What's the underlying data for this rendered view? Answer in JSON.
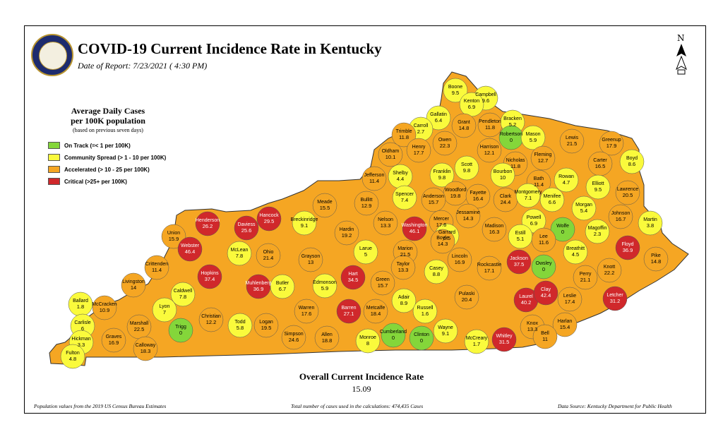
{
  "header": {
    "title": "COVID-19 Current Incidence Rate in Kentucky",
    "date": "Date of Report: 7/23/2021 ( 4:30 PM)"
  },
  "legend": {
    "title_line1": "Average Daily Cases",
    "title_line2": "per 100K population",
    "note": "(based on previous seven days)",
    "items": [
      {
        "label": "On Track (=< 1 per 100K)",
        "color": "#84d63a"
      },
      {
        "label": "Community Spread (> 1 - 10 per 100K)",
        "color": "#fafa3c"
      },
      {
        "label": "Accelerated (> 10 - 25 per 100K)",
        "color": "#f5a623"
      },
      {
        "label": "Critical (>25+ per 100K)",
        "color": "#d0282b"
      }
    ]
  },
  "counties": [
    {
      "name": "Boone",
      "value": "9.5"
    },
    {
      "name": "Campbell",
      "value": "9.6"
    },
    {
      "name": "Kenton",
      "value": "6.9"
    },
    {
      "name": "Gallatin",
      "value": "6.4"
    },
    {
      "name": "Carroll",
      "value": "2.7"
    },
    {
      "name": "Grant",
      "value": "14.8"
    },
    {
      "name": "Pendleton",
      "value": "11.8"
    },
    {
      "name": "Bracken",
      "value": "5.2"
    },
    {
      "name": "Trimble",
      "value": "11.8"
    },
    {
      "name": "Henry",
      "value": "17.7"
    },
    {
      "name": "Owen",
      "value": "22.3"
    },
    {
      "name": "Robertson",
      "value": "0"
    },
    {
      "name": "Mason",
      "value": "5.9"
    },
    {
      "name": "Lewis",
      "value": "21.5"
    },
    {
      "name": "Greenup",
      "value": "17.9"
    },
    {
      "name": "Harrison",
      "value": "12.1"
    },
    {
      "name": "Oldham",
      "value": "10.1"
    },
    {
      "name": "Fleming",
      "value": "12.7"
    },
    {
      "name": "Boyd",
      "value": "8.6"
    },
    {
      "name": "Carter",
      "value": "16.5"
    },
    {
      "name": "Nicholas",
      "value": "11.8"
    },
    {
      "name": "Scott",
      "value": "9.8"
    },
    {
      "name": "Jefferson",
      "value": "11.4"
    },
    {
      "name": "Shelby",
      "value": "4.4"
    },
    {
      "name": "Franklin",
      "value": "9.8"
    },
    {
      "name": "Bourbon",
      "value": "10"
    },
    {
      "name": "Bath",
      "value": "11.4"
    },
    {
      "name": "Rowan",
      "value": "4.7"
    },
    {
      "name": "Elliott",
      "value": "9.5"
    },
    {
      "name": "Lawrence",
      "value": "20.5"
    },
    {
      "name": "Woodford",
      "value": "19.8"
    },
    {
      "name": "Spencer",
      "value": "7.4"
    },
    {
      "name": "Anderson",
      "value": "15.7"
    },
    {
      "name": "Fayette",
      "value": "16.4"
    },
    {
      "name": "Clark",
      "value": "24.4"
    },
    {
      "name": "Montgomery",
      "value": "7.1"
    },
    {
      "name": "Menifee",
      "value": "6.6"
    },
    {
      "name": "Morgan",
      "value": "5.4"
    },
    {
      "name": "Hancock",
      "value": "29.5"
    },
    {
      "name": "Meade",
      "value": "15.5"
    },
    {
      "name": "Bullitt",
      "value": "12.9"
    },
    {
      "name": "Jessamine",
      "value": "14.3"
    },
    {
      "name": "Johnson",
      "value": "16.7"
    },
    {
      "name": "Martin",
      "value": "3.8"
    },
    {
      "name": "Henderson",
      "value": "26.2"
    },
    {
      "name": "Daviess",
      "value": "25.6"
    },
    {
      "name": "Breckinridge",
      "value": "9.1"
    },
    {
      "name": "Nelson",
      "value": "13.3"
    },
    {
      "name": "Washington",
      "value": "46.1"
    },
    {
      "name": "Mercer",
      "value": "17.6"
    },
    {
      "name": "Powell",
      "value": "6.9"
    },
    {
      "name": "Wolfe",
      "value": "0"
    },
    {
      "name": "Magoffin",
      "value": "2.3"
    },
    {
      "name": "Union",
      "value": "15.9"
    },
    {
      "name": "Hardin",
      "value": "19.2"
    },
    {
      "name": "Garrard",
      "value": "6.5"
    },
    {
      "name": "Madison",
      "value": "16.3"
    },
    {
      "name": "Estill",
      "value": "5.1"
    },
    {
      "name": "Lee",
      "value": "11.6"
    },
    {
      "name": "Boyle",
      "value": "14.3"
    },
    {
      "name": "Webster",
      "value": "46.4"
    },
    {
      "name": "McLean",
      "value": "7.8"
    },
    {
      "name": "Larue",
      "value": "5"
    },
    {
      "name": "Marion",
      "value": "21.5"
    },
    {
      "name": "Breathitt",
      "value": "4.5"
    },
    {
      "name": "Floyd",
      "value": "36.9"
    },
    {
      "name": "Ohio",
      "value": "21.4"
    },
    {
      "name": "Grayson",
      "value": "13"
    },
    {
      "name": "Lincoln",
      "value": "16.9"
    },
    {
      "name": "Rockcastle",
      "value": "17.1"
    },
    {
      "name": "Jackson",
      "value": "37.5"
    },
    {
      "name": "Owsley",
      "value": "0"
    },
    {
      "name": "Pike",
      "value": "14.8"
    },
    {
      "name": "Crittenden",
      "value": "11.4"
    },
    {
      "name": "Hopkins",
      "value": "37.4"
    },
    {
      "name": "Hart",
      "value": "34.5"
    },
    {
      "name": "Taylor",
      "value": "13.3"
    },
    {
      "name": "Casey",
      "value": "8.8"
    },
    {
      "name": "Knott",
      "value": "22.2"
    },
    {
      "name": "Perry",
      "value": "21.1"
    },
    {
      "name": "Livingston",
      "value": "14"
    },
    {
      "name": "Muhlenberg",
      "value": "36.9"
    },
    {
      "name": "Butler",
      "value": "6.7"
    },
    {
      "name": "Edmonson",
      "value": "5.9"
    },
    {
      "name": "Green",
      "value": "15.7"
    },
    {
      "name": "Caldwell",
      "value": "7.8"
    },
    {
      "name": "Adair",
      "value": "8.9"
    },
    {
      "name": "Pulaski",
      "value": "20.4"
    },
    {
      "name": "Laurel",
      "value": "40.2"
    },
    {
      "name": "Clay",
      "value": "42.4"
    },
    {
      "name": "Leslie",
      "value": "17.4"
    },
    {
      "name": "Letcher",
      "value": "31.2"
    },
    {
      "name": "Ballard",
      "value": "1.8"
    },
    {
      "name": "McCracken",
      "value": "10.9"
    },
    {
      "name": "Lyon",
      "value": "7"
    },
    {
      "name": "Barren",
      "value": "27.1"
    },
    {
      "name": "Metcalfe",
      "value": "18.4"
    },
    {
      "name": "Russell",
      "value": "1.6"
    },
    {
      "name": "Christian",
      "value": "12.2"
    },
    {
      "name": "Todd",
      "value": "5.8"
    },
    {
      "name": "Logan",
      "value": "19.5"
    },
    {
      "name": "Warren",
      "value": "17.6"
    },
    {
      "name": "Knox",
      "value": "13.3"
    },
    {
      "name": "Harlan",
      "value": "15.4"
    },
    {
      "name": "Carlisle",
      "value": "6"
    },
    {
      "name": "Marshall",
      "value": "22.5"
    },
    {
      "name": "Trigg",
      "value": "0"
    },
    {
      "name": "Cumberland",
      "value": "0"
    },
    {
      "name": "Wayne",
      "value": "9.1"
    },
    {
      "name": "Bell",
      "value": "11"
    },
    {
      "name": "Hickman",
      "value": "3.3"
    },
    {
      "name": "Graves",
      "value": "16.9"
    },
    {
      "name": "Calloway",
      "value": "18.3"
    },
    {
      "name": "Simpson",
      "value": "24.6"
    },
    {
      "name": "Allen",
      "value": "18.8"
    },
    {
      "name": "Monroe",
      "value": "8"
    },
    {
      "name": "Clinton",
      "value": "0"
    },
    {
      "name": "McCreary",
      "value": "1.7"
    },
    {
      "name": "Whitley",
      "value": "31.5"
    },
    {
      "name": "Fulton",
      "value": "4.8"
    }
  ],
  "overall": {
    "label": "Overall Current Incidence Rate",
    "value": "15.09"
  },
  "footer": {
    "population": "Population values from the 2019 US Census Bureau Estimates",
    "total": "Total number of cases used in the calculations: 474,435 Cases",
    "source": "Data Source: Kentucky Department for Public Health"
  },
  "compass": {
    "letter": "N"
  }
}
